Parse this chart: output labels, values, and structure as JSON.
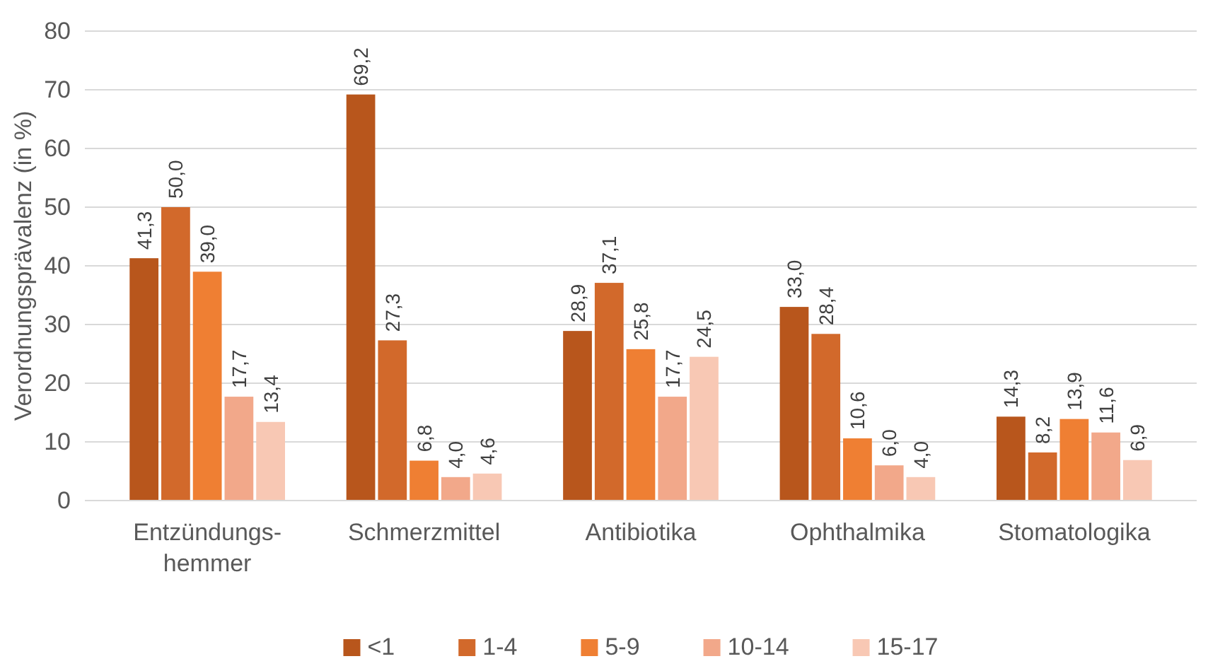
{
  "chart_data": {
    "type": "bar",
    "ylabel": "Verordnungsprävalenz (in %)",
    "categories": [
      "Entzündungs-hemmer",
      "Schmerzmittel",
      "Antibiotika",
      "Ophthalmika",
      "Stomatologika"
    ],
    "series": [
      {
        "name": "<1",
        "color": "#b8561c",
        "values": [
          41.3,
          69.2,
          28.9,
          33.0,
          14.3
        ],
        "value_labels": [
          "41,3",
          "69,2",
          "28,9",
          "33,0",
          "14,3"
        ]
      },
      {
        "name": "1-4",
        "color": "#d2692b",
        "values": [
          50.0,
          27.3,
          37.1,
          28.4,
          8.2
        ],
        "value_labels": [
          "50,0",
          "27,3",
          "37,1",
          "28,4",
          "8,2"
        ]
      },
      {
        "name": "5-9",
        "color": "#ef7f33",
        "values": [
          39.0,
          6.8,
          25.8,
          10.6,
          13.9
        ],
        "value_labels": [
          "39,0",
          "6,8",
          "25,8",
          "10,6",
          "13,9"
        ]
      },
      {
        "name": "10-14",
        "color": "#f2a88a",
        "values": [
          17.7,
          4.0,
          17.7,
          6.0,
          11.6
        ],
        "value_labels": [
          "17,7",
          "4,0",
          "17,7",
          "6,0",
          "11,6"
        ]
      },
      {
        "name": "15-17",
        "color": "#f8c8b4",
        "values": [
          13.4,
          4.6,
          24.5,
          4.0,
          6.9
        ],
        "value_labels": [
          "13,4",
          "4,6",
          "24,5",
          "4,0",
          "6,9"
        ]
      }
    ],
    "ylim": [
      0,
      80
    ],
    "yticks": [
      0,
      10,
      20,
      30,
      40,
      50,
      60,
      70,
      80
    ],
    "grid": "y",
    "legend": "bottom"
  }
}
